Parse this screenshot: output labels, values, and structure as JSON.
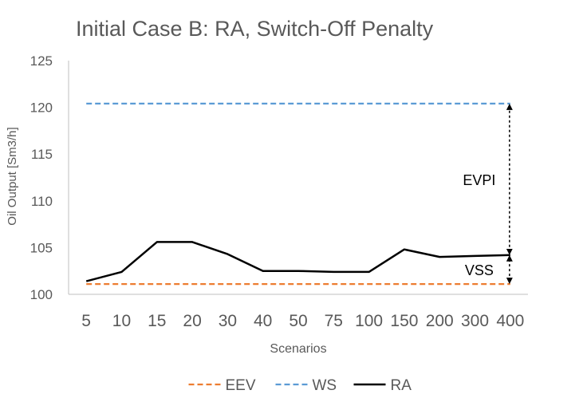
{
  "chart_data": {
    "type": "line",
    "title": "Initial Case B: RA, Switch-Off Penalty",
    "xlabel": "Scenarios",
    "ylabel": "Oil Output [Sm3/h]",
    "categories": [
      "5",
      "10",
      "15",
      "20",
      "30",
      "40",
      "50",
      "75",
      "100",
      "150",
      "200",
      "300",
      "400"
    ],
    "ylim": [
      100,
      125
    ],
    "yticks": [
      100,
      105,
      110,
      115,
      120,
      125
    ],
    "grid": false,
    "legend_position": "bottom",
    "series": [
      {
        "name": "EEV",
        "style": "dashed",
        "color": "#ED7D31",
        "values": [
          101.1,
          101.1,
          101.1,
          101.1,
          101.1,
          101.1,
          101.1,
          101.1,
          101.1,
          101.1,
          101.1,
          101.1,
          101.1
        ]
      },
      {
        "name": "WS",
        "style": "dashed",
        "color": "#5B9BD5",
        "values": [
          120.4,
          120.4,
          120.4,
          120.4,
          120.4,
          120.4,
          120.4,
          120.4,
          120.4,
          120.4,
          120.4,
          120.4,
          120.4
        ]
      },
      {
        "name": "RA",
        "style": "solid",
        "color": "#000000",
        "values": [
          101.4,
          102.4,
          105.6,
          105.6,
          104.3,
          102.5,
          102.5,
          102.4,
          102.4,
          104.8,
          104.0,
          104.1,
          104.2
        ]
      }
    ],
    "annotations": [
      {
        "label": "EVPI",
        "from_series": "RA",
        "to_series": "WS",
        "category": "400"
      },
      {
        "label": "VSS",
        "from_series": "EEV",
        "to_series": "RA",
        "category": "400"
      }
    ]
  }
}
